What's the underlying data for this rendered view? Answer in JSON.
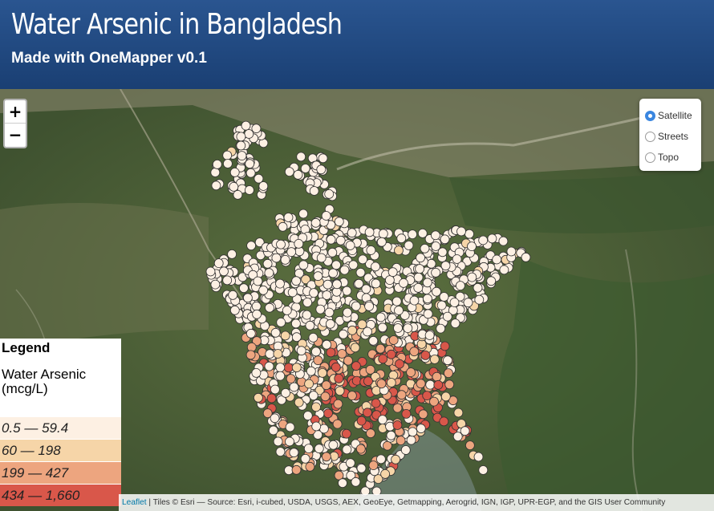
{
  "header": {
    "title": "Water Arsenic in Bangladesh",
    "subtitle": "Made with OneMapper v0.1"
  },
  "zoom": {
    "in_label": "+",
    "out_label": "−"
  },
  "layers": {
    "options": [
      "Satellite",
      "Streets",
      "Topo"
    ],
    "selected": "Satellite"
  },
  "legend": {
    "title": "Legend",
    "field": "Water Arsenic (mcg/L)",
    "classes": [
      {
        "label": "0.5 — 59.4",
        "color": "#fdf0e3"
      },
      {
        "label": "60 — 198",
        "color": "#f6d5a8"
      },
      {
        "label": "199 — 427",
        "color": "#eda57f"
      },
      {
        "label": "434 — 1,660",
        "color": "#d9574a"
      }
    ]
  },
  "attribution": {
    "leaflet": "Leaflet",
    "text": " | Tiles © Esri — Source: Esri, i-cubed, USDA, USGS, AEX, GeoEye, Getmapping, Aerogrid, IGN, IGP, UPR-EGP, and the GIS User Community"
  },
  "colors": {
    "header_bg": "#1e4a82",
    "marker_stroke": "#333333"
  }
}
